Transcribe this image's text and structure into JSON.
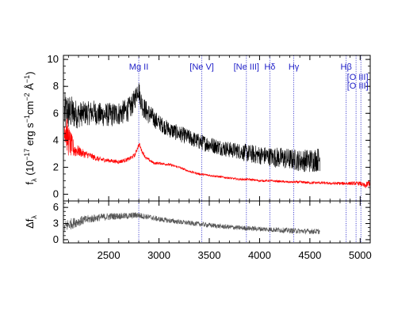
{
  "chart_data": {
    "type": "line",
    "x_range": [
      2050,
      5100
    ],
    "x_ticks": [
      2500,
      3000,
      3500,
      4000,
      4500,
      5000
    ],
    "x_tick_labels": [
      "2500",
      "3000",
      "3500",
      "4000",
      "4500",
      "5000"
    ],
    "top_panel": {
      "ylabel_parts": [
        "f",
        "λ",
        " (10",
        "−17",
        " erg s",
        "−1",
        "cm",
        "−2",
        " Å",
        "−1",
        ")"
      ],
      "ylim": [
        -0.5,
        10.3
      ],
      "y_ticks": [
        0,
        2,
        4,
        6,
        8,
        10
      ],
      "y_tick_labels": [
        "0",
        "2",
        "4",
        "6",
        "8",
        "10"
      ],
      "series": [
        {
          "color": "#000000",
          "x": [
            2060,
            2100,
            2150,
            2200,
            2250,
            2300,
            2350,
            2400,
            2450,
            2500,
            2550,
            2600,
            2650,
            2700,
            2740,
            2770,
            2790,
            2800,
            2815,
            2840,
            2880,
            2950,
            3000,
            3100,
            3200,
            3300,
            3400,
            3500,
            3600,
            3700,
            3800,
            3900,
            4000,
            4100,
            4200,
            4300,
            4400,
            4500,
            4600
          ],
          "y": [
            6.0,
            6.1,
            6.0,
            5.9,
            6.0,
            6.0,
            6.1,
            5.9,
            5.9,
            5.9,
            5.9,
            6.0,
            6.1,
            6.3,
            6.7,
            7.3,
            7.9,
            7.7,
            7.1,
            6.5,
            6.1,
            5.6,
            5.3,
            4.8,
            4.5,
            4.2,
            3.9,
            3.7,
            3.5,
            3.3,
            3.2,
            3.0,
            2.9,
            2.8,
            2.7,
            2.6,
            2.5,
            2.5,
            2.6
          ],
          "noise": [
            1.6,
            1.4,
            1.2,
            1.0,
            0.9,
            0.9,
            0.9,
            0.9,
            0.9,
            0.9,
            0.9,
            0.9,
            0.9,
            0.9,
            0.8,
            0.8,
            0.8,
            0.8,
            0.8,
            0.8,
            0.8,
            0.7,
            0.6,
            0.6,
            0.6,
            0.6,
            0.6,
            0.6,
            0.6,
            0.6,
            0.6,
            0.7,
            0.7,
            0.7,
            0.8,
            0.8,
            0.8,
            0.9,
            0.9
          ]
        },
        {
          "color": "#ff0000",
          "x": [
            2060,
            2080,
            2100,
            2130,
            2160,
            2200,
            2250,
            2300,
            2400,
            2500,
            2600,
            2700,
            2760,
            2790,
            2805,
            2830,
            2870,
            2950,
            3000,
            3100,
            3200,
            3300,
            3400,
            3500,
            3600,
            3700,
            3800,
            3900,
            4000,
            4100,
            4200,
            4300,
            4400,
            4500,
            4600,
            4700,
            4800,
            4900,
            5000,
            5050,
            5100
          ],
          "y": [
            5.2,
            4.6,
            4.0,
            3.6,
            3.3,
            3.2,
            3.0,
            2.9,
            2.6,
            2.5,
            2.4,
            2.6,
            2.9,
            3.5,
            3.7,
            3.2,
            2.7,
            2.3,
            2.3,
            2.2,
            2.0,
            1.7,
            1.5,
            1.4,
            1.3,
            1.2,
            1.1,
            1.1,
            1.0,
            1.0,
            0.95,
            0.9,
            0.9,
            0.85,
            0.85,
            0.8,
            0.8,
            0.8,
            0.8,
            0.6,
            0.9
          ],
          "noise": [
            1.6,
            1.4,
            1.2,
            0.9,
            0.6,
            0.4,
            0.3,
            0.25,
            0.2,
            0.15,
            0.15,
            0.15,
            0.15,
            0.15,
            0.15,
            0.15,
            0.12,
            0.1,
            0.1,
            0.1,
            0.08,
            0.08,
            0.08,
            0.08,
            0.08,
            0.08,
            0.08,
            0.08,
            0.08,
            0.08,
            0.08,
            0.08,
            0.1,
            0.1,
            0.1,
            0.1,
            0.12,
            0.12,
            0.15,
            0.2,
            0.3
          ]
        }
      ]
    },
    "bottom_panel": {
      "ylabel_parts": [
        "Δf",
        "λ"
      ],
      "ylim": [
        -0.6,
        7.2
      ],
      "y_ticks": [
        0,
        3,
        6
      ],
      "y_tick_labels": [
        "0",
        "3",
        "6"
      ],
      "series": [
        {
          "color": "#555555",
          "x": [
            2060,
            2100,
            2200,
            2300,
            2400,
            2500,
            2600,
            2700,
            2790,
            2800,
            2900,
            3000,
            3200,
            3400,
            3600,
            3800,
            4000,
            4200,
            4400,
            4600
          ],
          "y": [
            2.3,
            2.8,
            3.4,
            3.8,
            4.1,
            4.3,
            4.4,
            4.4,
            4.6,
            4.5,
            4.2,
            3.8,
            3.3,
            2.9,
            2.5,
            2.2,
            2.0,
            1.8,
            1.6,
            1.5
          ],
          "noise": [
            1.3,
            1.1,
            0.9,
            0.8,
            0.7,
            0.7,
            0.6,
            0.6,
            0.6,
            0.6,
            0.5,
            0.5,
            0.45,
            0.45,
            0.45,
            0.45,
            0.45,
            0.5,
            0.5,
            0.5
          ]
        }
      ]
    },
    "emission_lines": [
      {
        "label": "Mg II",
        "x": 2799
      },
      {
        "label": "[Ne V]",
        "x": 3426
      },
      {
        "label": "[Ne III]",
        "x": 3869
      },
      {
        "label": "Hδ",
        "x": 4102
      },
      {
        "label": "Hγ",
        "x": 4340
      },
      {
        "label": "Hβ",
        "x": 4861
      },
      {
        "label": "[O III]",
        "x": 4959
      },
      {
        "label": "[O III]",
        "x": 5007
      }
    ],
    "line_color": "#2020c8"
  }
}
